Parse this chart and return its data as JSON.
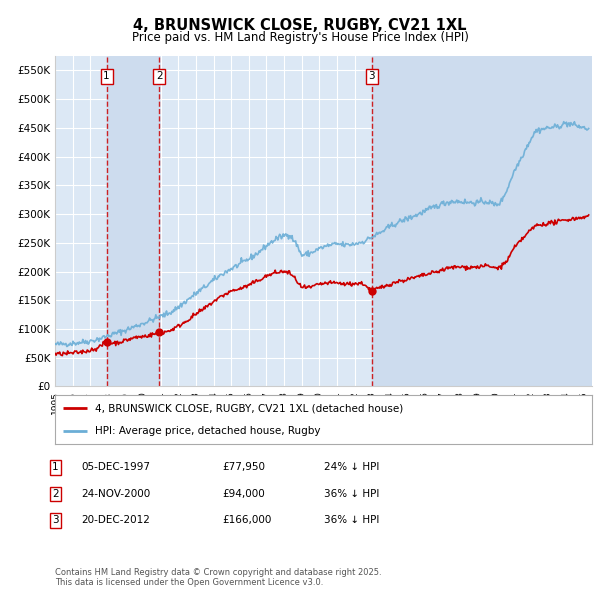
{
  "title": "4, BRUNSWICK CLOSE, RUGBY, CV21 1XL",
  "subtitle": "Price paid vs. HM Land Registry's House Price Index (HPI)",
  "background_color": "#ffffff",
  "plot_background": "#dce8f5",
  "grid_color": "#ffffff",
  "hpi_color": "#6baed6",
  "price_color": "#cc0000",
  "vline_color": "#cc0000",
  "shade_color": "#c8d8ee",
  "ylim": [
    0,
    575000
  ],
  "yticks": [
    0,
    50000,
    100000,
    150000,
    200000,
    250000,
    300000,
    350000,
    400000,
    450000,
    500000,
    550000
  ],
  "ytick_labels": [
    "£0",
    "£50K",
    "£100K",
    "£150K",
    "£200K",
    "£250K",
    "£300K",
    "£350K",
    "£400K",
    "£450K",
    "£500K",
    "£550K"
  ],
  "sale_dates_num": [
    1997.92,
    2000.9,
    2012.97
  ],
  "sale_prices": [
    77950,
    94000,
    166000
  ],
  "sale_labels": [
    "1",
    "2",
    "3"
  ],
  "sale_info": [
    {
      "label": "1",
      "date": "05-DEC-1997",
      "price": "£77,950",
      "pct": "24% ↓ HPI"
    },
    {
      "label": "2",
      "date": "24-NOV-2000",
      "price": "£94,000",
      "pct": "36% ↓ HPI"
    },
    {
      "label": "3",
      "date": "20-DEC-2012",
      "price": "£166,000",
      "pct": "36% ↓ HPI"
    }
  ],
  "legend_line1": "4, BRUNSWICK CLOSE, RUGBY, CV21 1XL (detached house)",
  "legend_line2": "HPI: Average price, detached house, Rugby",
  "footnote": "Contains HM Land Registry data © Crown copyright and database right 2025.\nThis data is licensed under the Open Government Licence v3.0.",
  "xmin": 1995.0,
  "xmax": 2025.5
}
